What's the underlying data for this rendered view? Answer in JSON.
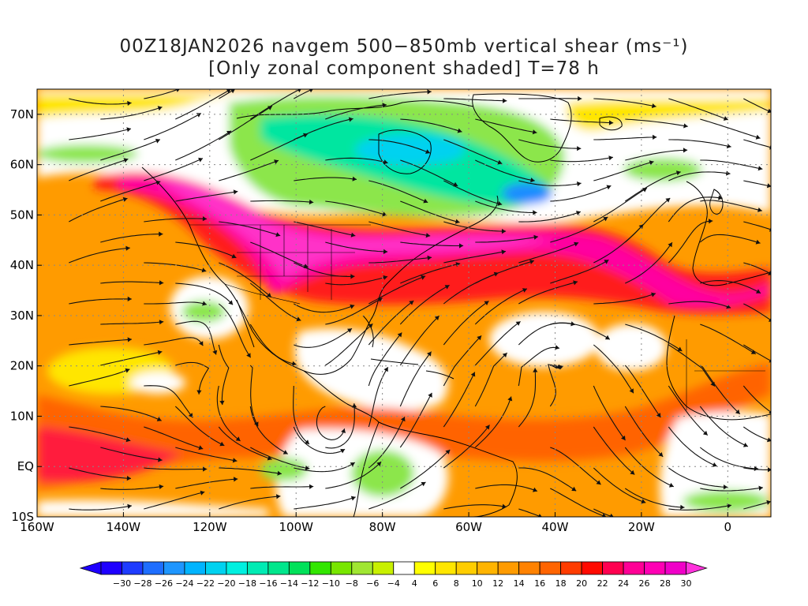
{
  "title": {
    "line1": "00Z18JAN2026 navgem 500−850mb vertical shear (ms⁻¹)",
    "line2": "[Only zonal component shaded] T=78 h"
  },
  "axes": {
    "lat_labels": [
      "70N",
      "60N",
      "50N",
      "40N",
      "30N",
      "20N",
      "10N",
      "EQ",
      "10S"
    ],
    "lon_labels": [
      "160W",
      "140W",
      "120W",
      "100W",
      "80W",
      "60W",
      "40W",
      "20W",
      "0"
    ],
    "lat_range": [
      -10,
      75
    ],
    "lon_range": [
      -160,
      10
    ],
    "grid": "dotted"
  },
  "colorbar": {
    "labels": [
      "−30",
      "−28",
      "−26",
      "−24",
      "−22",
      "−20",
      "−18",
      "−16",
      "−14",
      "−12",
      "−10",
      "−8",
      "−6",
      "−4",
      "4",
      "6",
      "8",
      "10",
      "12",
      "14",
      "16",
      "18",
      "20",
      "22",
      "24",
      "26",
      "28",
      "30"
    ],
    "colors": [
      "#1e00ff",
      "#1e3cff",
      "#1e6eff",
      "#1e96ff",
      "#00b4ff",
      "#00d2f0",
      "#00f0e0",
      "#00ebb4",
      "#00e68c",
      "#00e15a",
      "#32e600",
      "#78e600",
      "#a0e632",
      "#c8f000",
      "#ffffff",
      "#ffff00",
      "#ffe600",
      "#ffcd00",
      "#ffb400",
      "#ff9b00",
      "#ff8200",
      "#ff6400",
      "#ff3c00",
      "#ff0a00",
      "#ff0050",
      "#ff0096",
      "#ff00b4",
      "#f000c8",
      "#ff32dc"
    ]
  },
  "shading_palette": {
    "white": "#ffffff",
    "yellow": "#ffe600",
    "orange": "#ff9b00",
    "deep_orange": "#ff6400",
    "red": "#ff1e1e",
    "magenta": "#ff00a0",
    "green": "#8ce64b",
    "cyan_green": "#00e6a0",
    "blue": "#1e8cff"
  }
}
